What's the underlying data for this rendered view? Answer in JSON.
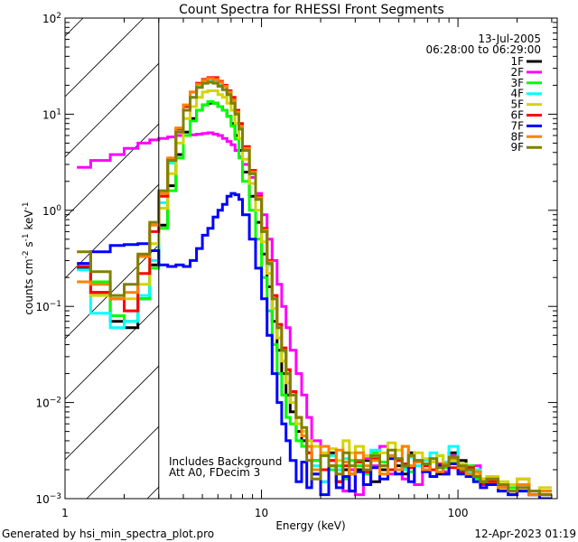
{
  "chart_data": {
    "type": "line",
    "title": "Count Spectra for RHESSI Front Segments",
    "xlabel": "Energy (keV)",
    "ylabel": "counts cm⁻² s⁻¹ keV⁻¹",
    "ylabel_parts": {
      "a": "counts cm",
      "e1": "-2",
      "b": " s",
      "e2": "-1",
      "c": " keV",
      "e3": "-1"
    },
    "xscale": "log",
    "yscale": "log",
    "xlim": [
      1,
      320
    ],
    "ylim": [
      0.001,
      100
    ],
    "x_ticks": [
      {
        "value": 1,
        "label": "1"
      },
      {
        "value": 10,
        "label": "10"
      },
      {
        "value": 100,
        "label": "100"
      }
    ],
    "y_ticks": [
      {
        "value": 100,
        "base": "10",
        "exp": "2"
      },
      {
        "value": 10,
        "base": "10",
        "exp": "1"
      },
      {
        "value": 1,
        "base": "10",
        "exp": "0"
      },
      {
        "value": 0.1,
        "base": "10",
        "exp": "−1"
      },
      {
        "value": 0.01,
        "base": "10",
        "exp": "−2"
      },
      {
        "value": 0.001,
        "base": "10",
        "exp": "−3"
      }
    ],
    "date": "13-Jul-2005",
    "time_range": "06:28:00 to 06:29:00",
    "annotations": [
      "Includes Background",
      "Att A0, FDecim 3"
    ],
    "hatched_region_below_keV": 3.0,
    "legend_placement": "top-right",
    "energy_edges": [
      1.15,
      1.35,
      1.7,
      2.0,
      2.35,
      2.7,
      3.0,
      3.33,
      3.67,
      4,
      4.33,
      4.67,
      5,
      5.33,
      5.67,
      6,
      6.33,
      6.67,
      7,
      7.33,
      7.67,
      8,
      8.67,
      9.33,
      10,
      10.67,
      11.33,
      12,
      12.67,
      13.33,
      14,
      15,
      16,
      17,
      18,
      20,
      22,
      24,
      26,
      28,
      30,
      33,
      36,
      40,
      44,
      48,
      52,
      56,
      60,
      66,
      72,
      78,
      84,
      90,
      100,
      110,
      120,
      130,
      140,
      160,
      180,
      200,
      230,
      260,
      300
    ],
    "series": [
      {
        "name": "1F",
        "color": "#000000",
        "values": [
          0.25,
          0.14,
          0.07,
          0.06,
          0.12,
          0.27,
          0.7,
          1.8,
          3.8,
          6.5,
          9,
          11,
          12.5,
          13,
          13,
          12,
          11,
          9.5,
          8,
          6,
          4.2,
          2.5,
          1.4,
          0.75,
          0.35,
          0.16,
          0.07,
          0.035,
          0.02,
          0.012,
          0.008,
          0.005,
          0.004,
          0.003,
          0.0025,
          0.002,
          0.003,
          0.0015,
          0.002,
          0.0018,
          0.002,
          0.0025,
          0.0015,
          0.002,
          0.0028,
          0.0022,
          0.0018,
          0.003,
          0.0025,
          0.002,
          0.0024,
          0.0018,
          0.0022,
          0.003,
          0.0025,
          0.002,
          0.0018,
          0.0015,
          0.0016,
          0.0013,
          0.0012,
          0.0014,
          0.0011,
          0.0012
        ]
      },
      {
        "name": "2F",
        "color": "#ff00ff",
        "values": [
          2.8,
          3.3,
          3.8,
          4.4,
          5.0,
          5.4,
          5.6,
          5.8,
          6.0,
          6.0,
          6.1,
          6.2,
          6.3,
          6.4,
          6.2,
          6.0,
          5.6,
          5.2,
          4.8,
          4.2,
          3.6,
          3.0,
          2.2,
          1.5,
          0.9,
          0.5,
          0.3,
          0.17,
          0.1,
          0.06,
          0.035,
          0.02,
          0.012,
          0.007,
          0.004,
          0.0015,
          0.0025,
          0.002,
          0.0012,
          0.002,
          0.0011,
          0.0026,
          0.0022,
          0.0035,
          0.0018,
          0.002,
          0.0016,
          0.0028,
          0.0014,
          0.0022,
          0.0017,
          0.0023,
          0.0019,
          0.0028,
          0.0021,
          0.0018,
          0.0022,
          0.0016,
          0.0014,
          0.0013,
          0.0011,
          0.0016,
          0.0012,
          0.0011
        ]
      },
      {
        "name": "3F",
        "color": "#00ff00",
        "values": [
          0.26,
          0.18,
          0.08,
          0.07,
          0.12,
          0.25,
          0.65,
          1.6,
          3.5,
          6,
          8.5,
          11,
          12.5,
          13.5,
          13,
          12,
          11,
          9.5,
          7.5,
          5.5,
          3.5,
          2.0,
          1.0,
          0.5,
          0.2,
          0.09,
          0.04,
          0.02,
          0.012,
          0.007,
          0.006,
          0.004,
          0.0035,
          0.003,
          0.0025,
          0.0028,
          0.002,
          0.0022,
          0.0016,
          0.0025,
          0.0022,
          0.0018,
          0.003,
          0.0024,
          0.002,
          0.0026,
          0.0021,
          0.0019,
          0.0025,
          0.0023,
          0.002,
          0.0028,
          0.0021,
          0.0024,
          0.002,
          0.0022,
          0.0016,
          0.0014,
          0.0015,
          0.0012,
          0.0013,
          0.0012,
          0.0011,
          0.0012
        ]
      },
      {
        "name": "4F",
        "color": "#00ffff",
        "values": [
          0.24,
          0.085,
          0.06,
          0.07,
          0.13,
          0.3,
          1.2,
          3.1,
          6.5,
          11,
          15,
          19,
          21,
          22,
          22,
          20,
          18,
          16,
          13,
          10,
          7,
          4.2,
          2.4,
          1.3,
          0.6,
          0.27,
          0.12,
          0.06,
          0.034,
          0.02,
          0.012,
          0.007,
          0.005,
          0.003,
          0.0022,
          0.0015,
          0.0028,
          0.002,
          0.0026,
          0.0018,
          0.0024,
          0.002,
          0.0032,
          0.0022,
          0.0028,
          0.0025,
          0.002,
          0.0027,
          0.0022,
          0.0025,
          0.003,
          0.0021,
          0.0024,
          0.0035,
          0.0022,
          0.0019,
          0.002,
          0.0015,
          0.0017,
          0.0014,
          0.0012,
          0.0013,
          0.0012,
          0.0011
        ]
      },
      {
        "name": "5F",
        "color": "#d4d400",
        "values": [
          0.26,
          0.13,
          0.13,
          0.12,
          0.17,
          0.45,
          1.05,
          2.4,
          5,
          9,
          12,
          15,
          17,
          17.5,
          17.5,
          16,
          15,
          13,
          11,
          8,
          5.6,
          3.4,
          1.9,
          1.0,
          0.47,
          0.22,
          0.095,
          0.047,
          0.027,
          0.016,
          0.01,
          0.006,
          0.005,
          0.004,
          0.0035,
          0.003,
          0.0033,
          0.0025,
          0.004,
          0.003,
          0.0035,
          0.0028,
          0.0025,
          0.003,
          0.0038,
          0.0032,
          0.0035,
          0.0028,
          0.003,
          0.0026,
          0.0024,
          0.0028,
          0.0022,
          0.0025,
          0.0023,
          0.002,
          0.0018,
          0.0016,
          0.0017,
          0.0015,
          0.0014,
          0.0016,
          0.0012,
          0.0013
        ]
      },
      {
        "name": "6F",
        "color": "#ff0000",
        "values": [
          0.26,
          0.14,
          0.12,
          0.09,
          0.22,
          0.6,
          1.4,
          3.4,
          7,
          12,
          17,
          21,
          23,
          24,
          24,
          22,
          20,
          17.5,
          15,
          11,
          8,
          4.6,
          2.6,
          1.4,
          0.65,
          0.3,
          0.13,
          0.065,
          0.037,
          0.022,
          0.013,
          0.007,
          0.0045,
          0.003,
          0.0018,
          0.002,
          0.0025,
          0.0015,
          0.0022,
          0.0012,
          0.0024,
          0.0019,
          0.0026,
          0.0022,
          0.002,
          0.0025,
          0.0023,
          0.0021,
          0.0024,
          0.0022,
          0.002,
          0.0023,
          0.0018,
          0.0021,
          0.0019,
          0.0021,
          0.0017,
          0.0014,
          0.0015,
          0.0013,
          0.0012,
          0.0013,
          0.0011,
          0.0011
        ]
      },
      {
        "name": "7F",
        "color": "#0000ff",
        "values": [
          0.28,
          0.37,
          0.43,
          0.44,
          0.45,
          0.38,
          0.27,
          0.26,
          0.27,
          0.26,
          0.3,
          0.4,
          0.55,
          0.65,
          0.85,
          1.0,
          1.15,
          1.4,
          1.5,
          1.45,
          1.3,
          0.9,
          0.5,
          0.25,
          0.12,
          0.05,
          0.02,
          0.01,
          0.006,
          0.004,
          0.0025,
          0.0015,
          0.0024,
          0.0013,
          0.0018,
          0.0011,
          0.0022,
          0.0013,
          0.0017,
          0.0012,
          0.0019,
          0.0014,
          0.0021,
          0.0016,
          0.0026,
          0.0018,
          0.0022,
          0.0015,
          0.0024,
          0.0019,
          0.0017,
          0.0022,
          0.0018,
          0.0023,
          0.0018,
          0.0017,
          0.0015,
          0.0013,
          0.0014,
          0.0012,
          0.0011,
          0.0012,
          0.0011,
          0.001
        ]
      },
      {
        "name": "8F",
        "color": "#ff8000",
        "values": [
          0.18,
          0.17,
          0.12,
          0.14,
          0.33,
          0.7,
          1.5,
          3.5,
          7.2,
          12.5,
          17,
          20.5,
          22.5,
          23.5,
          23,
          21.5,
          19.5,
          17,
          14,
          10.5,
          7.5,
          4.4,
          2.5,
          1.35,
          0.62,
          0.29,
          0.12,
          0.06,
          0.035,
          0.02,
          0.012,
          0.007,
          0.0045,
          0.0035,
          0.002,
          0.0035,
          0.0022,
          0.0032,
          0.0024,
          0.0018,
          0.003,
          0.0022,
          0.0025,
          0.0018,
          0.0028,
          0.002,
          0.0035,
          0.0022,
          0.0024,
          0.002,
          0.0026,
          0.0019,
          0.0023,
          0.0026,
          0.0021,
          0.0018,
          0.0019,
          0.0015,
          0.0016,
          0.0013,
          0.0012,
          0.0014,
          0.0011,
          0.0012
        ]
      },
      {
        "name": "9F",
        "color": "#808000",
        "values": [
          0.37,
          0.23,
          0.13,
          0.17,
          0.35,
          0.75,
          1.6,
          3.3,
          6.5,
          11,
          15,
          19,
          21,
          21.5,
          21,
          19.5,
          18,
          16,
          13,
          10,
          7,
          4.2,
          2.4,
          1.3,
          0.6,
          0.28,
          0.12,
          0.06,
          0.035,
          0.02,
          0.012,
          0.007,
          0.0055,
          0.0025,
          0.0016,
          0.0028,
          0.0022,
          0.0018,
          0.003,
          0.0022,
          0.0025,
          0.002,
          0.0028,
          0.0022,
          0.0032,
          0.0026,
          0.0022,
          0.0028,
          0.0025,
          0.0023,
          0.0026,
          0.0021,
          0.0022,
          0.0027,
          0.0022,
          0.002,
          0.0017,
          0.0015,
          0.0016,
          0.0014,
          0.0012,
          0.0013,
          0.0012,
          0.0011
        ]
      }
    ]
  },
  "footer": {
    "generated_by": "Generated by hsi_min_spectra_plot.pro",
    "timestamp": "12-Apr-2023 01:19"
  }
}
